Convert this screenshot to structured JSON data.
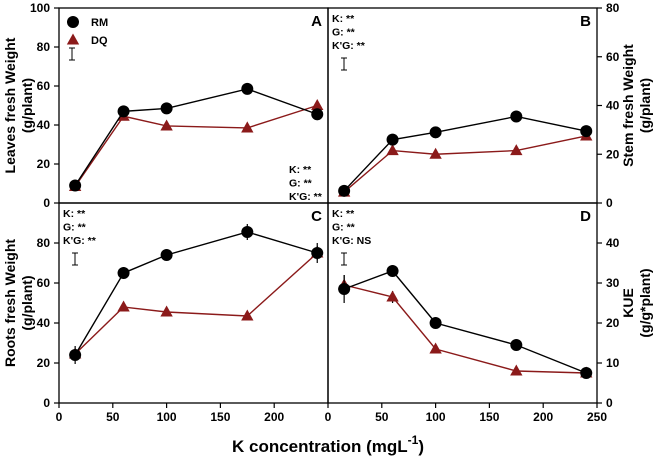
{
  "figure": {
    "x_axis_title": "K concentration (mgL",
    "x_axis_title_sup": "-1",
    "x_axis_title_close": ")",
    "colors": {
      "RM": "#000000",
      "DQ": "#8b1a1a"
    }
  },
  "legend": {
    "entries": [
      {
        "name": "RM",
        "marker": "circle"
      },
      {
        "name": "DQ",
        "marker": "triangle"
      }
    ],
    "panel": "A",
    "placement": "top-left"
  },
  "chart_data": [
    {
      "type": "line",
      "panel_label": "A",
      "ylabel": [
        "Leaves fresh Weight",
        "(g/plant)"
      ],
      "y_side": "left",
      "xlim": [
        0,
        250
      ],
      "ylim": [
        0,
        100
      ],
      "x_ticks": [],
      "x_tick_labels": false,
      "y_ticks": [
        0,
        20,
        40,
        60,
        80,
        100
      ],
      "x": [
        15,
        60,
        100,
        175,
        240
      ],
      "series": [
        {
          "name": "RM",
          "values": [
            9,
            47,
            48.5,
            58.5,
            45.5
          ],
          "errors": [
            1,
            1.5,
            1,
            1,
            3
          ]
        },
        {
          "name": "DQ",
          "values": [
            8.5,
            44.5,
            39.5,
            38.5,
            50
          ],
          "errors": [
            1,
            1,
            1,
            1,
            1.5
          ]
        }
      ],
      "stats": [
        "K: **",
        "G: **",
        "K'G: **"
      ],
      "stats_position": "bottom-right",
      "sd_bar": true
    },
    {
      "type": "line",
      "panel_label": "B",
      "ylabel": [
        "Stem fresh Weight",
        "(g/plant)"
      ],
      "y_side": "right",
      "xlim": [
        0,
        250
      ],
      "ylim": [
        0,
        80
      ],
      "x_ticks": [],
      "x_tick_labels": false,
      "y_ticks": [
        0,
        20,
        40,
        60,
        80
      ],
      "x": [
        15,
        60,
        100,
        175,
        240
      ],
      "series": [
        {
          "name": "RM",
          "values": [
            5,
            26,
            29,
            35.5,
            29.5
          ],
          "errors": [
            1,
            1,
            1,
            1,
            1
          ]
        },
        {
          "name": "DQ",
          "values": [
            4.5,
            21.5,
            20,
            21.5,
            27.5
          ],
          "errors": [
            0.8,
            1,
            1,
            1,
            1
          ]
        }
      ],
      "stats": [
        "K: **",
        "G: **",
        "K'G: **"
      ],
      "stats_position": "top-left",
      "sd_bar": true
    },
    {
      "type": "line",
      "panel_label": "C",
      "ylabel": [
        "Roots fresh Weight",
        "(g/plant)"
      ],
      "y_side": "left",
      "xlim": [
        0,
        250
      ],
      "ylim": [
        0,
        100
      ],
      "x_ticks": [
        0,
        50,
        100,
        150,
        200
      ],
      "x_tick_labels": true,
      "y_ticks": [
        0,
        20,
        40,
        60,
        80
      ],
      "x": [
        15,
        60,
        100,
        175,
        240
      ],
      "series": [
        {
          "name": "RM",
          "values": [
            24,
            65,
            74,
            85.5,
            75
          ],
          "errors": [
            4.5,
            3,
            1.5,
            4,
            3.5
          ]
        },
        {
          "name": "DQ",
          "values": [
            24.5,
            48,
            45.5,
            43.5,
            75
          ],
          "errors": [
            1.5,
            1,
            1,
            1,
            5
          ]
        }
      ],
      "stats": [
        "K: **",
        "G: **",
        "K'G: **"
      ],
      "stats_position": "top-left",
      "sd_bar": true
    },
    {
      "type": "line",
      "panel_label": "D",
      "ylabel": [
        "KUE",
        "(g/g*plant)"
      ],
      "y_side": "right",
      "xlim": [
        0,
        250
      ],
      "ylim": [
        0,
        50
      ],
      "x_ticks": [
        0,
        50,
        100,
        150,
        200,
        250
      ],
      "x_tick_labels": true,
      "y_ticks": [
        0,
        10,
        20,
        30,
        40
      ],
      "x": [
        15,
        60,
        100,
        175,
        240
      ],
      "series": [
        {
          "name": "RM",
          "values": [
            28.5,
            33,
            20,
            14.5,
            7.5
          ],
          "errors": [
            3.5,
            1,
            1,
            1,
            0.8
          ]
        },
        {
          "name": "DQ",
          "values": [
            29.5,
            26.5,
            13.5,
            8,
            7.5
          ],
          "errors": [
            2.5,
            1.5,
            1,
            0.8,
            0.5
          ]
        }
      ],
      "stats": [
        "K: **",
        "G: **",
        "K'G: NS"
      ],
      "stats_position": "top-left",
      "sd_bar": true
    }
  ]
}
